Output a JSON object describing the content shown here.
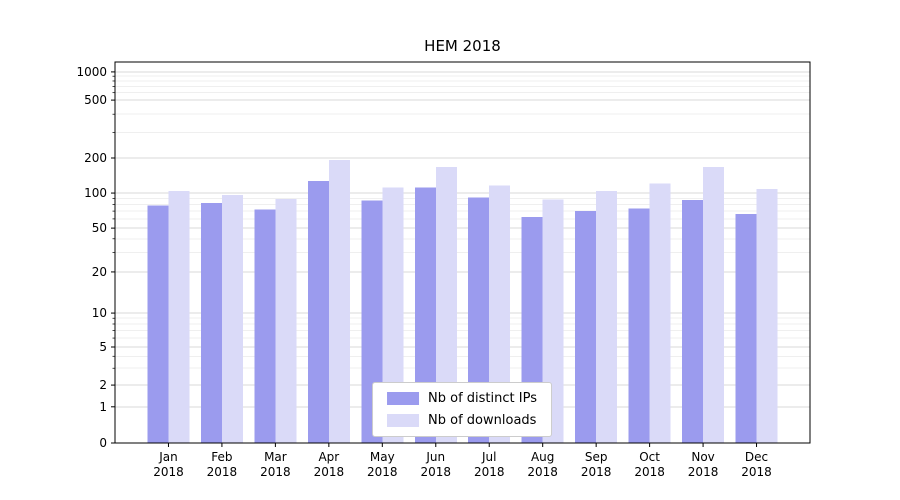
{
  "chart_data": {
    "type": "bar",
    "title": "HEM 2018",
    "xlabel": "",
    "ylabel": "",
    "yscale": "symlog",
    "yticks": [
      0,
      1,
      2,
      5,
      10,
      20,
      50,
      100,
      200,
      500,
      1000
    ],
    "ylim": [
      0,
      1200
    ],
    "grid": {
      "major": true,
      "minor": true
    },
    "legend_position": "lower center",
    "categories": [
      "Jan\n2018",
      "Feb\n2018",
      "Mar\n2018",
      "Apr\n2018",
      "May\n2018",
      "Jun\n2018",
      "Jul\n2018",
      "Aug\n2018",
      "Sep\n2018",
      "Oct\n2018",
      "Nov\n2018",
      "Dec\n2018"
    ],
    "series": [
      {
        "name": "Nb of distinct IPs",
        "color": "#9b9bee",
        "values": [
          78,
          82,
          72,
          127,
          86,
          112,
          92,
          62,
          70,
          74,
          87,
          66
        ]
      },
      {
        "name": "Nb of downloads",
        "color": "#dadaf8",
        "values": [
          104,
          96,
          89,
          193,
          112,
          167,
          116,
          88,
          104,
          121,
          167,
          108
        ]
      }
    ],
    "colors": {
      "major_grid": "#d9d9d9",
      "minor_grid": "#efefef",
      "axis_frame": "#000000",
      "legend_border": "#cccccc"
    }
  }
}
